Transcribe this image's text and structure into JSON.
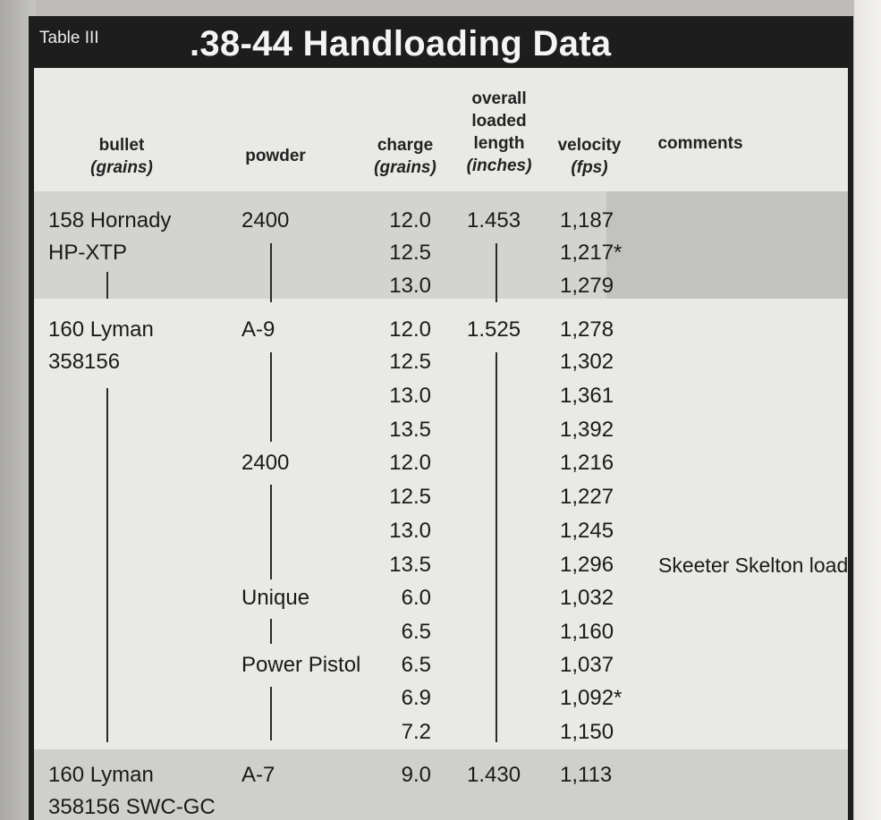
{
  "table": {
    "label": "Table III",
    "title": ".38-44 Handloading Data"
  },
  "headers": {
    "bullet": "bullet",
    "bullet_unit": "(grains)",
    "powder": "powder",
    "charge": "charge",
    "charge_unit": "(grains)",
    "oal_1": "overall",
    "oal_2": "loaded",
    "oal_3": "length",
    "oal_unit": "(inches)",
    "velocity": "velocity",
    "velocity_unit": "(fps)",
    "comments": "comments"
  },
  "rows": [
    {
      "bullet": "158 Hornady",
      "powder": "2400",
      "charge": "12.0",
      "oal": "1.453",
      "velocity": "1,187",
      "comment": ""
    },
    {
      "bullet": "HP-XTP",
      "powder": "",
      "charge": "12.5",
      "oal": "",
      "velocity": "1,217*",
      "comment": ""
    },
    {
      "bullet": "",
      "powder": "",
      "charge": "13.0",
      "oal": "",
      "velocity": "1,279",
      "comment": ""
    },
    {
      "bullet": "160 Lyman",
      "powder": "A-9",
      "charge": "12.0",
      "oal": "1.525",
      "velocity": "1,278",
      "comment": ""
    },
    {
      "bullet": "358156",
      "powder": "",
      "charge": "12.5",
      "oal": "",
      "velocity": "1,302",
      "comment": ""
    },
    {
      "bullet": "",
      "powder": "",
      "charge": "13.0",
      "oal": "",
      "velocity": "1,361",
      "comment": ""
    },
    {
      "bullet": "",
      "powder": "",
      "charge": "13.5",
      "oal": "",
      "velocity": "1,392",
      "comment": ""
    },
    {
      "bullet": "",
      "powder": "2400",
      "charge": "12.0",
      "oal": "",
      "velocity": "1,216",
      "comment": ""
    },
    {
      "bullet": "",
      "powder": "",
      "charge": "12.5",
      "oal": "",
      "velocity": "1,227",
      "comment": ""
    },
    {
      "bullet": "",
      "powder": "",
      "charge": "13.0",
      "oal": "",
      "velocity": "1,245",
      "comment": ""
    },
    {
      "bullet": "",
      "powder": "",
      "charge": "13.5",
      "oal": "",
      "velocity": "1,296",
      "comment": "Skeeter Skelton load"
    },
    {
      "bullet": "",
      "powder": "Unique",
      "charge": "6.0",
      "oal": "",
      "velocity": "1,032",
      "comment": ""
    },
    {
      "bullet": "",
      "powder": "",
      "charge": "6.5",
      "oal": "",
      "velocity": "1,160",
      "comment": ""
    },
    {
      "bullet": "",
      "powder": "Power Pistol",
      "charge": "6.5",
      "oal": "",
      "velocity": "1,037",
      "comment": ""
    },
    {
      "bullet": "",
      "powder": "",
      "charge": "6.9",
      "oal": "",
      "velocity": "1,092*",
      "comment": ""
    },
    {
      "bullet": "",
      "powder": "",
      "charge": "7.2",
      "oal": "",
      "velocity": "1,150",
      "comment": ""
    },
    {
      "bullet": "160 Lyman",
      "powder": "A-7",
      "charge": "9.0",
      "oal": "1.430",
      "velocity": "1,113",
      "comment": ""
    },
    {
      "bullet": "358156 SWC-GC",
      "powder": "",
      "charge": "",
      "oal": "",
      "velocity": "",
      "comment": ""
    }
  ]
}
